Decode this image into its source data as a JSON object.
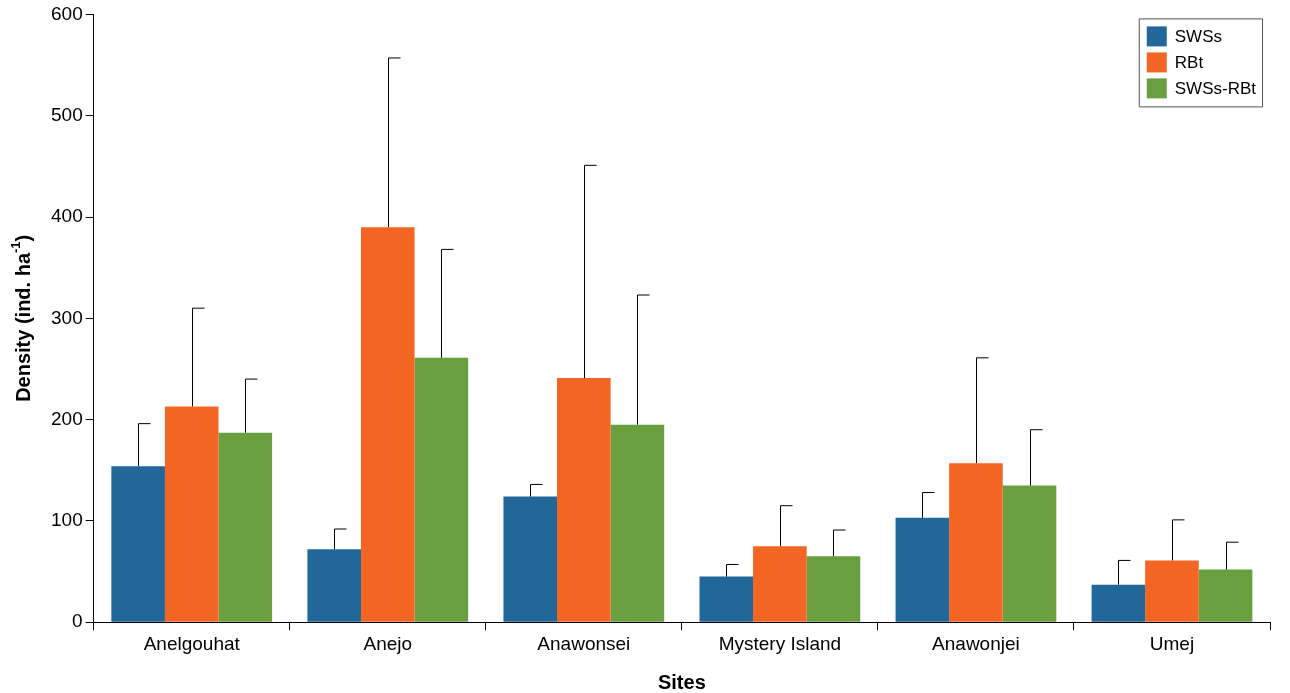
{
  "chart_data": {
    "type": "bar",
    "xlabel": "Sites",
    "ylabel": "Density (ind. ha$^{-1}$)",
    "categories": [
      "Anelgouhat",
      "Anejo",
      "Anawonsei",
      "Mystery Island",
      "Anawonjei",
      "Umej"
    ],
    "series": [
      {
        "name": "SWSs",
        "color": "#21679a",
        "values": [
          154,
          72,
          124,
          45,
          103,
          37
        ],
        "errors": [
          [
            154,
            196
          ],
          [
            72,
            92
          ],
          [
            124,
            136
          ],
          [
            45,
            57
          ],
          [
            103,
            128
          ],
          [
            37,
            61
          ]
        ]
      },
      {
        "name": "RBt",
        "color": "#f26522",
        "values": [
          213,
          390,
          241,
          75,
          157,
          61
        ],
        "errors": [
          [
            213,
            310
          ],
          [
            390,
            557
          ],
          [
            241,
            451
          ],
          [
            75,
            115
          ],
          [
            157,
            261
          ],
          [
            61,
            101
          ]
        ]
      },
      {
        "name": "SWSs-RBt",
        "color": "#6a9f3f",
        "values": [
          187,
          261,
          195,
          65,
          135,
          52
        ],
        "errors": [
          [
            187,
            240
          ],
          [
            261,
            368
          ],
          [
            195,
            323
          ],
          [
            65,
            91
          ],
          [
            135,
            190
          ],
          [
            52,
            79
          ]
        ]
      }
    ],
    "ylim": [
      0,
      600
    ],
    "yticks": [
      0,
      100,
      200,
      300,
      400,
      500,
      600
    ],
    "grid": false,
    "legend": "top right"
  }
}
